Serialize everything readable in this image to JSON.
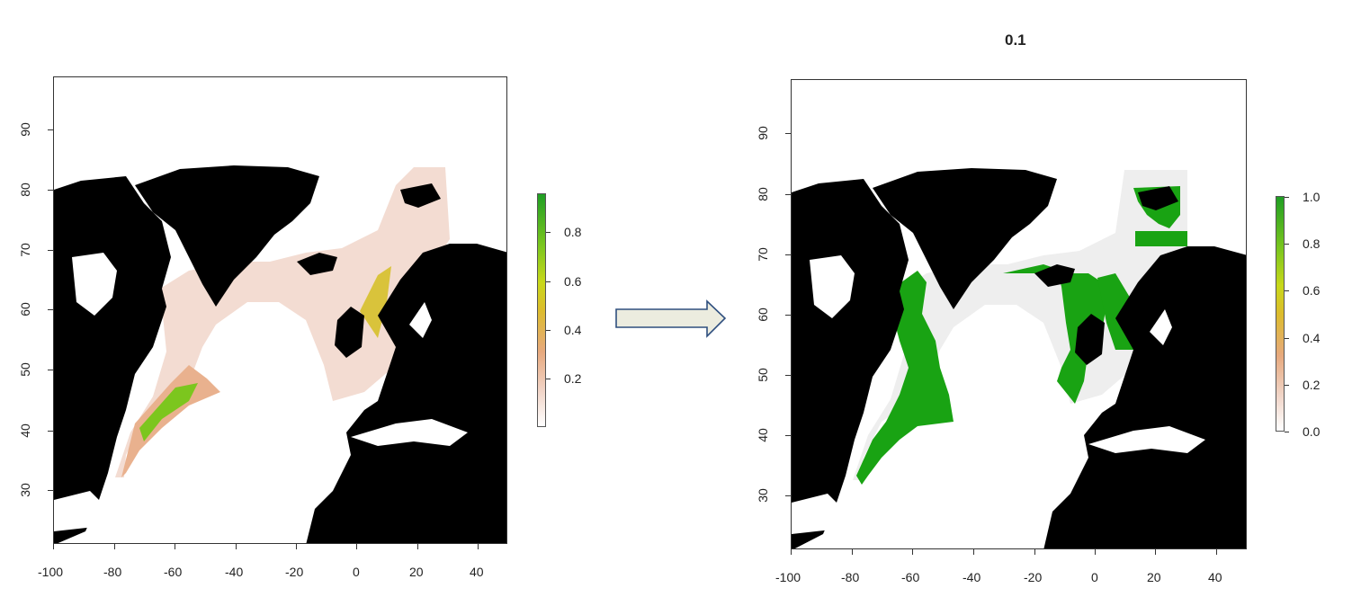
{
  "left_map": {
    "x_ticks": [
      "-100",
      "-80",
      "-60",
      "-40",
      "-20",
      "0",
      "20",
      "40"
    ],
    "y_ticks": [
      "30",
      "40",
      "50",
      "60",
      "70",
      "80",
      "90"
    ],
    "legend": {
      "labels": [
        "0.2",
        "0.4",
        "0.6",
        "0.8"
      ],
      "colors": [
        "#ffffff",
        "#f1d5c8",
        "#e7a97e",
        "#dcbc2c",
        "#c8d81a",
        "#7ac61e",
        "#1f9e23"
      ]
    }
  },
  "right_map": {
    "title": "0.1",
    "x_ticks": [
      "-100",
      "-80",
      "-60",
      "-40",
      "-20",
      "0",
      "20",
      "40"
    ],
    "y_ticks": [
      "30",
      "40",
      "50",
      "60",
      "70",
      "80",
      "90"
    ],
    "legend": {
      "labels": [
        "0.0",
        "0.2",
        "0.4",
        "0.6",
        "0.8",
        "1.0"
      ],
      "colors": [
        "#ffffff",
        "#f1d5c8",
        "#e7a97e",
        "#dcbc2c",
        "#c8d81a",
        "#7ac61e",
        "#1f9e23"
      ]
    }
  },
  "colors": {
    "land": "#000000",
    "ocean": "#ffffff",
    "suitability_low": "#f2dcd3",
    "suitability_mid": "#e8a07a",
    "suitability_high": "#1f9e23",
    "presence": "#19a313",
    "absence": "#eeeeee",
    "arrow_fill": "#ececdf",
    "arrow_stroke": "#2f4f7f"
  }
}
